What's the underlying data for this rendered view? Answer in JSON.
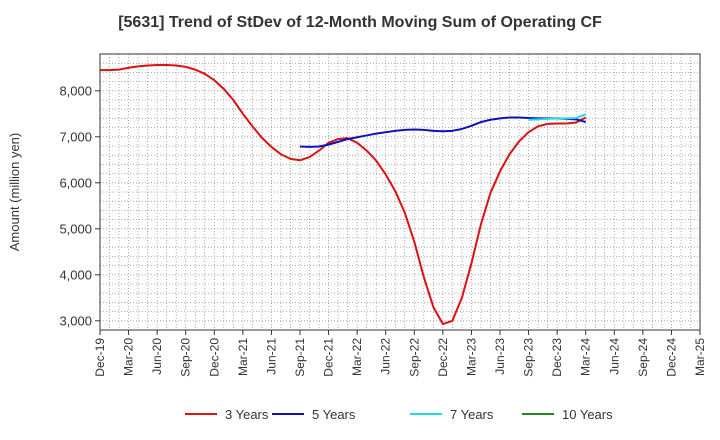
{
  "chart_data": {
    "type": "line",
    "title": "[5631]  Trend of StDev of 12-Month Moving Sum of Operating CF",
    "ylabel": "Amount (million yen)",
    "xlabel": "",
    "ylim": [
      2800,
      8800
    ],
    "yticks": [
      3000,
      4000,
      5000,
      6000,
      7000,
      8000
    ],
    "ytick_labels": [
      "3,000",
      "4,000",
      "5,000",
      "6,000",
      "7,000",
      "8,000"
    ],
    "xtick_labels": [
      "Dec-19",
      "Mar-20",
      "Jun-20",
      "Sep-20",
      "Dec-20",
      "Mar-21",
      "Jun-21",
      "Sep-21",
      "Dec-21",
      "Mar-22",
      "Jun-22",
      "Sep-22",
      "Dec-22",
      "Mar-23",
      "Jun-23",
      "Sep-23",
      "Dec-23",
      "Mar-24",
      "Jun-24",
      "Sep-24",
      "Dec-24",
      "Mar-25"
    ],
    "grid": true,
    "legend_position": "bottom",
    "series": [
      {
        "name": "3 Years",
        "color": "#dd1111",
        "points": [
          [
            "Dec-19",
            8450
          ],
          [
            "Jan-20",
            8450
          ],
          [
            "Feb-20",
            8460
          ],
          [
            "Mar-20",
            8500
          ],
          [
            "Apr-20",
            8530
          ],
          [
            "May-20",
            8550
          ],
          [
            "Jun-20",
            8560
          ],
          [
            "Jul-20",
            8560
          ],
          [
            "Aug-20",
            8550
          ],
          [
            "Sep-20",
            8520
          ],
          [
            "Oct-20",
            8460
          ],
          [
            "Nov-20",
            8370
          ],
          [
            "Dec-20",
            8230
          ],
          [
            "Jan-21",
            8040
          ],
          [
            "Feb-21",
            7800
          ],
          [
            "Mar-21",
            7500
          ],
          [
            "Apr-21",
            7230
          ],
          [
            "May-21",
            6980
          ],
          [
            "Jun-21",
            6780
          ],
          [
            "Jul-21",
            6620
          ],
          [
            "Aug-21",
            6520
          ],
          [
            "Sep-21",
            6490
          ],
          [
            "Oct-21",
            6560
          ],
          [
            "Nov-21",
            6700
          ],
          [
            "Dec-21",
            6870
          ],
          [
            "Jan-22",
            6950
          ],
          [
            "Feb-22",
            6970
          ],
          [
            "Mar-22",
            6870
          ],
          [
            "Apr-22",
            6700
          ],
          [
            "May-22",
            6480
          ],
          [
            "Jun-22",
            6180
          ],
          [
            "Jul-22",
            5820
          ],
          [
            "Aug-22",
            5350
          ],
          [
            "Sep-22",
            4720
          ],
          [
            "Oct-22",
            3950
          ],
          [
            "Nov-22",
            3300
          ],
          [
            "Dec-22",
            2930
          ],
          [
            "Jan-23",
            3000
          ],
          [
            "Feb-23",
            3500
          ],
          [
            "Mar-23",
            4250
          ],
          [
            "Apr-23",
            5100
          ],
          [
            "May-23",
            5780
          ],
          [
            "Jun-23",
            6250
          ],
          [
            "Jul-23",
            6620
          ],
          [
            "Aug-23",
            6900
          ],
          [
            "Sep-23",
            7100
          ],
          [
            "Oct-23",
            7230
          ],
          [
            "Nov-23",
            7280
          ],
          [
            "Dec-23",
            7290
          ],
          [
            "Jan-24",
            7290
          ],
          [
            "Feb-24",
            7310
          ],
          [
            "Mar-24",
            7420
          ]
        ]
      },
      {
        "name": "5 Years",
        "color": "#1111bb",
        "points": [
          [
            "Sep-21",
            6790
          ],
          [
            "Oct-21",
            6780
          ],
          [
            "Nov-21",
            6790
          ],
          [
            "Dec-21",
            6830
          ],
          [
            "Jan-22",
            6890
          ],
          [
            "Feb-22",
            6950
          ],
          [
            "Mar-22",
            6990
          ],
          [
            "Apr-22",
            7030
          ],
          [
            "May-22",
            7070
          ],
          [
            "Jun-22",
            7100
          ],
          [
            "Jul-22",
            7130
          ],
          [
            "Aug-22",
            7150
          ],
          [
            "Sep-22",
            7160
          ],
          [
            "Oct-22",
            7150
          ],
          [
            "Nov-22",
            7130
          ],
          [
            "Dec-22",
            7120
          ],
          [
            "Jan-23",
            7130
          ],
          [
            "Feb-23",
            7170
          ],
          [
            "Mar-23",
            7240
          ],
          [
            "Apr-23",
            7320
          ],
          [
            "May-23",
            7370
          ],
          [
            "Jun-23",
            7400
          ],
          [
            "Jul-23",
            7420
          ],
          [
            "Aug-23",
            7420
          ],
          [
            "Sep-23",
            7410
          ],
          [
            "Oct-23",
            7400
          ],
          [
            "Nov-23",
            7400
          ],
          [
            "Dec-23",
            7400
          ],
          [
            "Jan-24",
            7390
          ],
          [
            "Feb-24",
            7380
          ],
          [
            "Mar-24",
            7320
          ]
        ]
      },
      {
        "name": "7 Years",
        "color": "#22dddd",
        "points": [
          [
            "Sep-23",
            7370
          ],
          [
            "Oct-23",
            7380
          ],
          [
            "Nov-23",
            7390
          ],
          [
            "Dec-23",
            7400
          ],
          [
            "Jan-24",
            7400
          ],
          [
            "Feb-24",
            7410
          ],
          [
            "Mar-24",
            7490
          ]
        ]
      },
      {
        "name": "10 Years",
        "color": "#228822",
        "points": []
      }
    ]
  }
}
